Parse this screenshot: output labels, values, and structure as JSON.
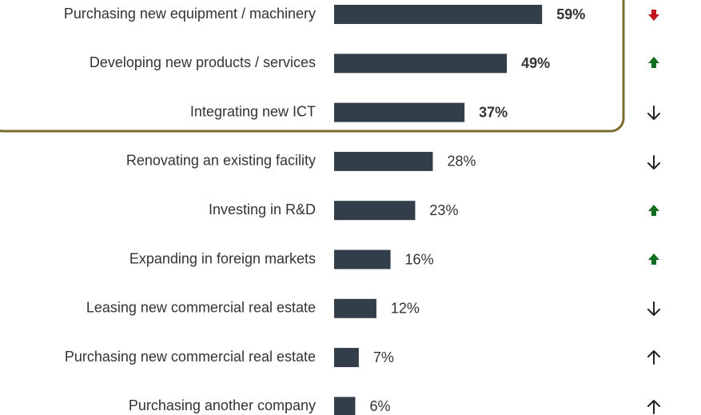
{
  "chart_data": {
    "type": "bar",
    "orientation": "horizontal",
    "categories": [
      "Purchasing new equipment / machinery",
      "Developing new products / services",
      "Integrating new ICT",
      "Renovating an existing facility",
      "Investing in R&D",
      "Expanding in foreign markets",
      "Leasing new commercial real estate",
      "Purchasing new commercial real estate",
      "Purchasing another company"
    ],
    "values": [
      59,
      49,
      37,
      28,
      23,
      16,
      12,
      7,
      6
    ],
    "value_labels": [
      "59%",
      "49%",
      "37%",
      "28%",
      "23%",
      "16%",
      "12%",
      "7%",
      "6%"
    ],
    "color": "#323f4a"
  }
}
